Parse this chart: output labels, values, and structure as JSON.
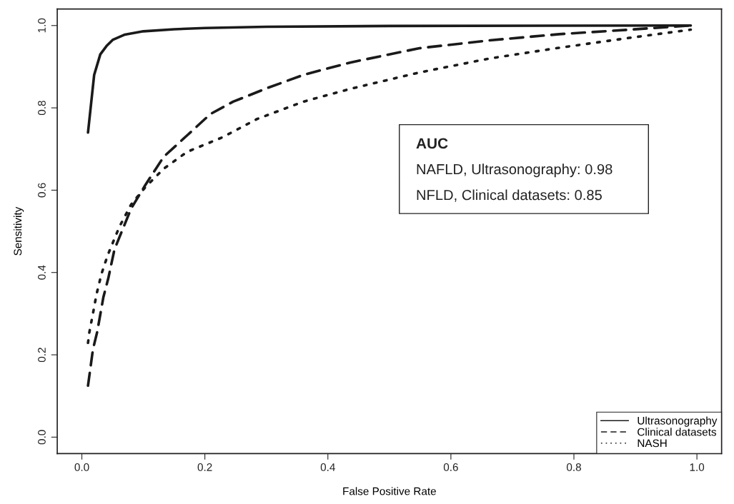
{
  "chart_data": {
    "type": "line",
    "xlabel": "False Positive Rate",
    "ylabel": "Sensitivity",
    "xlim": [
      -0.04,
      1.04
    ],
    "ylim": [
      -0.04,
      1.04
    ],
    "xticks": [
      {
        "value": 0,
        "label": "0.0"
      },
      {
        "value": 0.2,
        "label": "0.2"
      },
      {
        "value": 0.4,
        "label": "0.4"
      },
      {
        "value": 0.6,
        "label": "0.6"
      },
      {
        "value": 0.8,
        "label": "0.8"
      },
      {
        "value": 1,
        "label": "1.0"
      }
    ],
    "yticks": [
      {
        "value": 0,
        "label": "0.0"
      },
      {
        "value": 0.2,
        "label": "0.2"
      },
      {
        "value": 0.4,
        "label": "0.4"
      },
      {
        "value": 0.6,
        "label": "0.6"
      },
      {
        "value": 0.8,
        "label": "0.8"
      },
      {
        "value": 1,
        "label": "1.0"
      }
    ],
    "grid": false,
    "legend": "bottom right",
    "marker": "none",
    "annotations": [
      "AUC",
      "NAFLD, Ultrasonography: 0.98",
      "NFLD, Clinical datasets: 0.85"
    ],
    "series": [
      {
        "name": "Ultrasonography",
        "color": "#1a1a1a",
        "line_style": "solid",
        "x": [
          0.01,
          0.02,
          0.03,
          0.04,
          0.05,
          0.07,
          0.1,
          0.15,
          0.2,
          0.3,
          0.5,
          0.99
        ],
        "values": [
          0.74,
          0.88,
          0.93,
          0.95,
          0.965,
          0.978,
          0.986,
          0.991,
          0.994,
          0.997,
          0.999,
          1.0
        ]
      },
      {
        "name": "Clinical datasets",
        "color": "#1a1a1a",
        "line_style": "dashed",
        "x": [
          0.01,
          0.018,
          0.025,
          0.035,
          0.043,
          0.053,
          0.08,
          0.103,
          0.133,
          0.171,
          0.209,
          0.246,
          0.303,
          0.36,
          0.436,
          0.549,
          0.663,
          0.776,
          0.89,
          0.99
        ],
        "values": [
          0.125,
          0.213,
          0.256,
          0.34,
          0.386,
          0.456,
          0.555,
          0.612,
          0.681,
          0.733,
          0.785,
          0.815,
          0.849,
          0.88,
          0.91,
          0.945,
          0.964,
          0.979,
          0.99,
          1.0
        ]
      },
      {
        "name": "NASH",
        "color": "#1a1a1a",
        "line_style": "dotted",
        "x": [
          0.01,
          0.012,
          0.018,
          0.024,
          0.032,
          0.042,
          0.061,
          0.08,
          0.103,
          0.133,
          0.171,
          0.228,
          0.285,
          0.36,
          0.436,
          0.549,
          0.663,
          0.776,
          0.89,
          0.99
        ],
        "values": [
          0.229,
          0.253,
          0.3,
          0.348,
          0.397,
          0.442,
          0.511,
          0.565,
          0.607,
          0.652,
          0.693,
          0.728,
          0.773,
          0.815,
          0.846,
          0.886,
          0.92,
          0.946,
          0.97,
          0.99
        ]
      }
    ]
  }
}
